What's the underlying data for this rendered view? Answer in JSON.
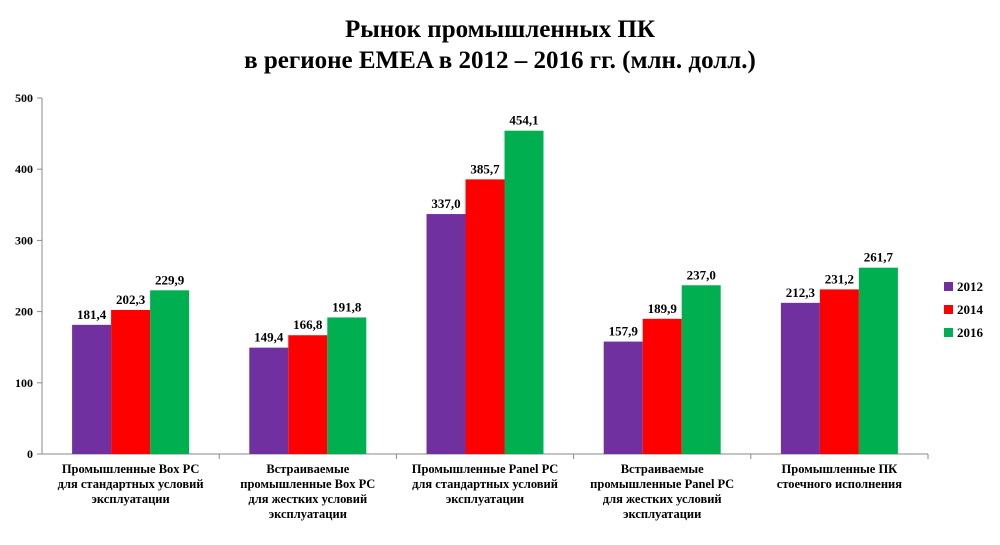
{
  "chart_data": {
    "type": "bar",
    "title_lines": [
      "Рынок промышленных ПК",
      "в регионе EMEA в 2012 – 2016 гг. (млн. долл.)"
    ],
    "categories": [
      [
        "Промышленные Box PC",
        "для стандартных условий",
        "эксплуатации"
      ],
      [
        "Встраиваемые",
        "промышленные Box PC",
        "для жестких условий",
        "эксплуатации"
      ],
      [
        "Промышленные Panel PC",
        "для стандартных условий",
        "эксплуатации"
      ],
      [
        "Встраиваемые",
        "промышленные Panel PC",
        "для жестких условий",
        "эксплуатации"
      ],
      [
        "Промышленные ПК",
        "стоечного исполнения"
      ]
    ],
    "series": [
      {
        "name": "2012",
        "color": "#7030A0",
        "values": [
          181.4,
          149.4,
          337.0,
          157.9,
          212.3
        ],
        "labels": [
          "181,4",
          "149,4",
          "337,0",
          "157,9",
          "212,3"
        ]
      },
      {
        "name": "2014",
        "color": "#FF0000",
        "values": [
          202.3,
          166.8,
          385.7,
          189.9,
          231.2
        ],
        "labels": [
          "202,3",
          "166,8",
          "385,7",
          "189,9",
          "231,2"
        ]
      },
      {
        "name": "2016",
        "color": "#00B050",
        "values": [
          229.9,
          191.8,
          454.1,
          237.0,
          261.7
        ],
        "labels": [
          "229,9",
          "191,8",
          "454,1",
          "237,0",
          "261,7"
        ]
      }
    ],
    "ylim": [
      0,
      500
    ],
    "yticks": [
      "0",
      "100",
      "200",
      "300",
      "400",
      "500"
    ],
    "grid": false,
    "legend_position": "right"
  }
}
